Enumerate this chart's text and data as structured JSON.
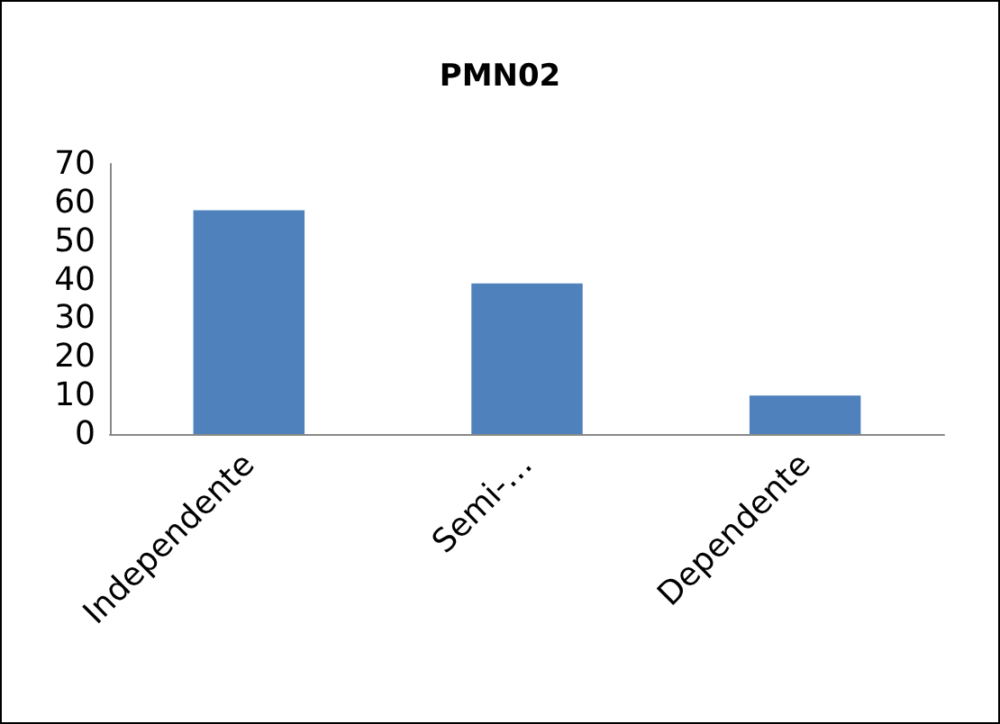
{
  "chart_data": {
    "type": "bar",
    "title": "PMN02",
    "categories": [
      "Independente",
      "Semi-…",
      "Dependente"
    ],
    "values": [
      58,
      39,
      10
    ],
    "color": "#4f81bd",
    "ylim": [
      0,
      70
    ],
    "yticks": [
      0,
      10,
      20,
      30,
      40,
      50,
      60,
      70
    ],
    "grid": false
  }
}
